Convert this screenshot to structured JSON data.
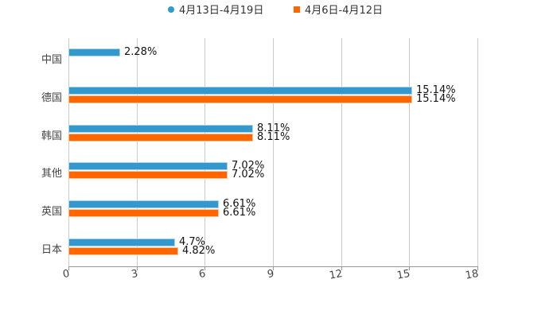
{
  "chart_data": {
    "type": "bar",
    "orientation": "horizontal",
    "title": "",
    "xlabel": "",
    "ylabel": "",
    "categories": [
      "中国",
      "德国",
      "韩国",
      "其他",
      "英国",
      "日本"
    ],
    "series": [
      {
        "name": "4月13日-4月19日",
        "color": "#3399cc",
        "values": [
          2.28,
          15.14,
          8.11,
          7.02,
          6.61,
          4.7
        ],
        "labels": [
          "2.28%",
          "15.14%",
          "8.11%",
          "7.02%",
          "6.61%",
          "4.7%"
        ]
      },
      {
        "name": "4月6日-4月12日",
        "color": "#ff6600",
        "values": [
          null,
          15.14,
          8.11,
          7.02,
          6.61,
          4.82
        ],
        "labels": [
          "",
          "15.14%",
          "8.11%",
          "7.02%",
          "6.61%",
          "4.82%"
        ]
      }
    ],
    "xlim": [
      0,
      18
    ],
    "x_ticks": [
      "0",
      "3",
      "6",
      "9",
      "12",
      "15",
      "18"
    ],
    "grid": true,
    "legend_position": "top"
  },
  "legend": [
    {
      "label": "4月13日-4月19日",
      "color": "#3399cc",
      "marker": "circle"
    },
    {
      "label": "4月6日-4月12日",
      "color": "#ff6600",
      "marker": "square"
    }
  ]
}
